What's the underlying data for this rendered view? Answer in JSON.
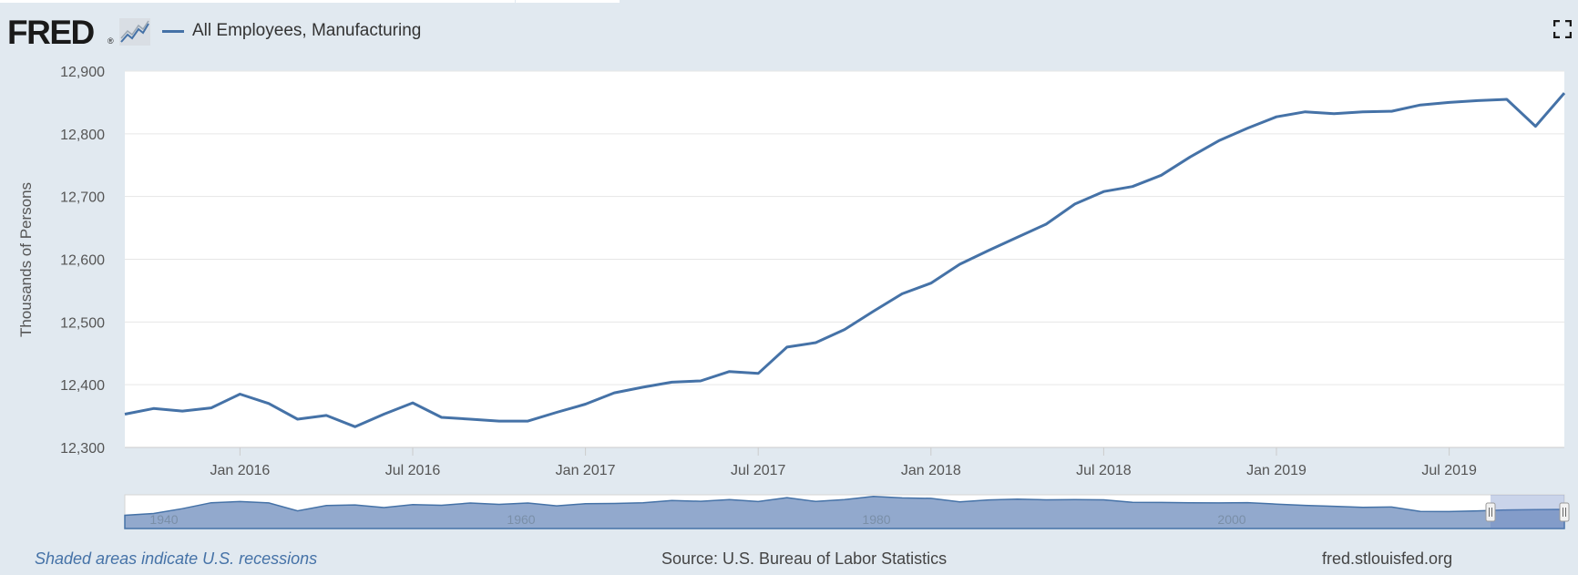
{
  "header": {
    "logo_text": "FRED",
    "logo_reg": "®",
    "series_name": "All Employees, Manufacturing"
  },
  "footer": {
    "recession_note": "Shaded areas indicate U.S. recessions",
    "source": "Source: U.S. Bureau of Labor Statistics",
    "site": "fred.stlouisfed.org"
  },
  "colors": {
    "line": "#4572a7",
    "plot_bg": "#ffffff",
    "page_bg": "#e1e9f0",
    "grid": "#e6e6e6",
    "navigator_fill": "#7f9ac4"
  },
  "icons": [
    "fred-graph-icon",
    "fullscreen-icon"
  ],
  "chart_data": {
    "type": "line",
    "title": "",
    "xlabel": "",
    "ylabel": "Thousands of Persons",
    "ylim": [
      12300,
      12900
    ],
    "yticks": [
      "12,300",
      "12,400",
      "12,500",
      "12,600",
      "12,700",
      "12,800",
      "12,900"
    ],
    "xticks": [
      "Jan 2016",
      "Jul 2016",
      "Jan 2017",
      "Jul 2017",
      "Jan 2018",
      "Jul 2018",
      "Jan 2019",
      "Jul 2019"
    ],
    "grid": true,
    "series": [
      {
        "name": "All Employees, Manufacturing",
        "x": [
          "2015-09",
          "2015-10",
          "2015-11",
          "2015-12",
          "2016-01",
          "2016-02",
          "2016-03",
          "2016-04",
          "2016-05",
          "2016-06",
          "2016-07",
          "2016-08",
          "2016-09",
          "2016-10",
          "2016-11",
          "2016-12",
          "2017-01",
          "2017-02",
          "2017-03",
          "2017-04",
          "2017-05",
          "2017-06",
          "2017-07",
          "2017-08",
          "2017-09",
          "2017-10",
          "2017-11",
          "2017-12",
          "2018-01",
          "2018-02",
          "2018-03",
          "2018-04",
          "2018-05",
          "2018-06",
          "2018-07",
          "2018-08",
          "2018-09",
          "2018-10",
          "2018-11",
          "2018-12",
          "2019-01",
          "2019-02",
          "2019-03",
          "2019-04",
          "2019-05",
          "2019-06",
          "2019-07",
          "2019-08",
          "2019-09",
          "2019-10",
          "2019-11"
        ],
        "values": [
          12353,
          12362,
          12358,
          12363,
          12385,
          12370,
          12345,
          12351,
          12333,
          12353,
          12371,
          12348,
          12345,
          12342,
          12342,
          12356,
          12369,
          12387,
          12396,
          12404,
          12406,
          12421,
          12418,
          12460,
          12467,
          12488,
          12517,
          12545,
          12562,
          12592,
          12614,
          12635,
          12656,
          12688,
          12708,
          12716,
          12734,
          12763,
          12789,
          12809,
          12827,
          12835,
          12832,
          12835,
          12836,
          12846,
          12850,
          12853,
          12855,
          12812,
          12865
        ]
      }
    ],
    "navigator": {
      "range_labels": [
        "1940",
        "1960",
        "1980",
        "2000"
      ],
      "values": [
        9000,
        10200,
        13500,
        17500,
        18300,
        17400,
        12000,
        15600,
        16000,
        14200,
        16200,
        15800,
        17300,
        16400,
        17300,
        15400,
        16800,
        17000,
        17500,
        19000,
        18500,
        19600,
        18300,
        21000,
        18400,
        19700,
        21800,
        20800,
        20500,
        18100,
        19400,
        19900,
        19500,
        19600,
        19500,
        17800,
        17700,
        17500,
        17400,
        17600,
        16600,
        15700,
        15100,
        14400,
        14600,
        11600,
        11500,
        12000,
        12600,
        12800,
        13000
      ]
    }
  }
}
